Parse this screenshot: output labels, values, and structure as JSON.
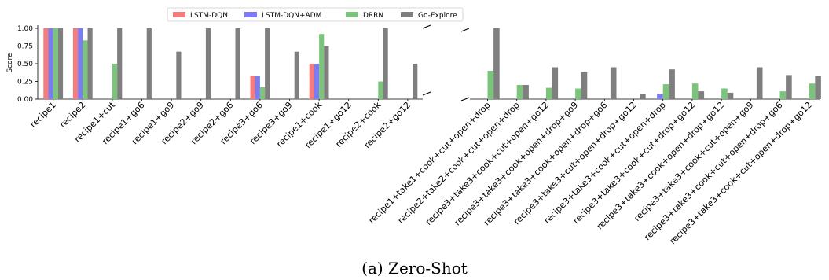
{
  "caption": "(a) Zero-Shot",
  "chart_data": {
    "type": "bar",
    "ylabel": "Score",
    "ylim": [
      0,
      1.0
    ],
    "yticks": [
      "0.00",
      "0.25",
      "0.50",
      "0.75",
      "1.00"
    ],
    "grid": false,
    "legend_position": "top-center",
    "broken_x_axis": true,
    "series": [
      {
        "name": "LSTM-DQN",
        "color": "#f47c7c"
      },
      {
        "name": "LSTM-DQN+ADM",
        "color": "#7b7bf2"
      },
      {
        "name": "DRRN",
        "color": "#7cc47c"
      },
      {
        "name": "Go-Explore",
        "color": "#7f7f7f"
      }
    ],
    "panels": [
      {
        "categories": [
          "recipe1",
          "recipe2",
          "recipe1+cut",
          "recipe1+go6",
          "recipe1+go9",
          "recipe2+go9",
          "recipe2+go6",
          "recipe3+go6",
          "recipe3+go9",
          "recipe1+cook",
          "recipe1+go12",
          "recipe2+cook",
          "recipe2+go12"
        ],
        "values": [
          [
            1.0,
            1.0,
            1.0,
            1.0
          ],
          [
            1.0,
            1.0,
            0.83,
            1.0
          ],
          [
            0,
            0,
            0.5,
            1.0
          ],
          [
            0,
            0,
            0,
            1.0
          ],
          [
            0,
            0,
            0,
            0.67
          ],
          [
            0,
            0,
            0,
            1.0
          ],
          [
            0,
            0,
            0,
            1.0
          ],
          [
            0.33,
            0.33,
            0.17,
            1.0
          ],
          [
            0,
            0,
            0,
            0.67
          ],
          [
            0.5,
            0.5,
            0.92,
            0.75
          ],
          [
            0,
            0,
            0,
            0
          ],
          [
            0,
            0,
            0.25,
            1.0
          ],
          [
            0,
            0,
            0,
            0.5
          ]
        ]
      },
      {
        "categories": [
          "recipe1+take1+cook+cut+open+drop",
          "recipe2+take2+cook+cut+open+drop",
          "recipe3+take3+cook+cut+open+go12",
          "recipe3+take3+cook+open+drop+go9",
          "recipe3+take3+cook+open+drop+go6",
          "recipe3+take3+cut+open+drop+go12",
          "recipe3+take3+cook+cut+open+drop",
          "recipe3+take3+cook+cut+drop+go12",
          "recipe3+take3+cook+open+drop+go12",
          "recipe3+take3+cook+cut+open+go9",
          "recipe3+take3+cook+cut+open+drop+go6",
          "recipe3+take3+cook+cut+open+drop+go12"
        ],
        "values": [
          [
            0,
            0,
            0.4,
            1.0
          ],
          [
            0,
            0,
            0.2,
            0.2
          ],
          [
            0,
            0,
            0.16,
            0.45
          ],
          [
            0,
            0,
            0.15,
            0.38
          ],
          [
            0,
            0,
            0,
            0.45
          ],
          [
            0,
            0,
            0,
            0.07
          ],
          [
            0,
            0.07,
            0.21,
            0.42
          ],
          [
            0,
            0,
            0.22,
            0.11
          ],
          [
            0,
            0,
            0.15,
            0.09
          ],
          [
            0,
            0,
            0,
            0.45
          ],
          [
            0,
            0,
            0.11,
            0.34
          ],
          [
            0,
            0,
            0.22,
            0.33
          ]
        ]
      }
    ]
  }
}
